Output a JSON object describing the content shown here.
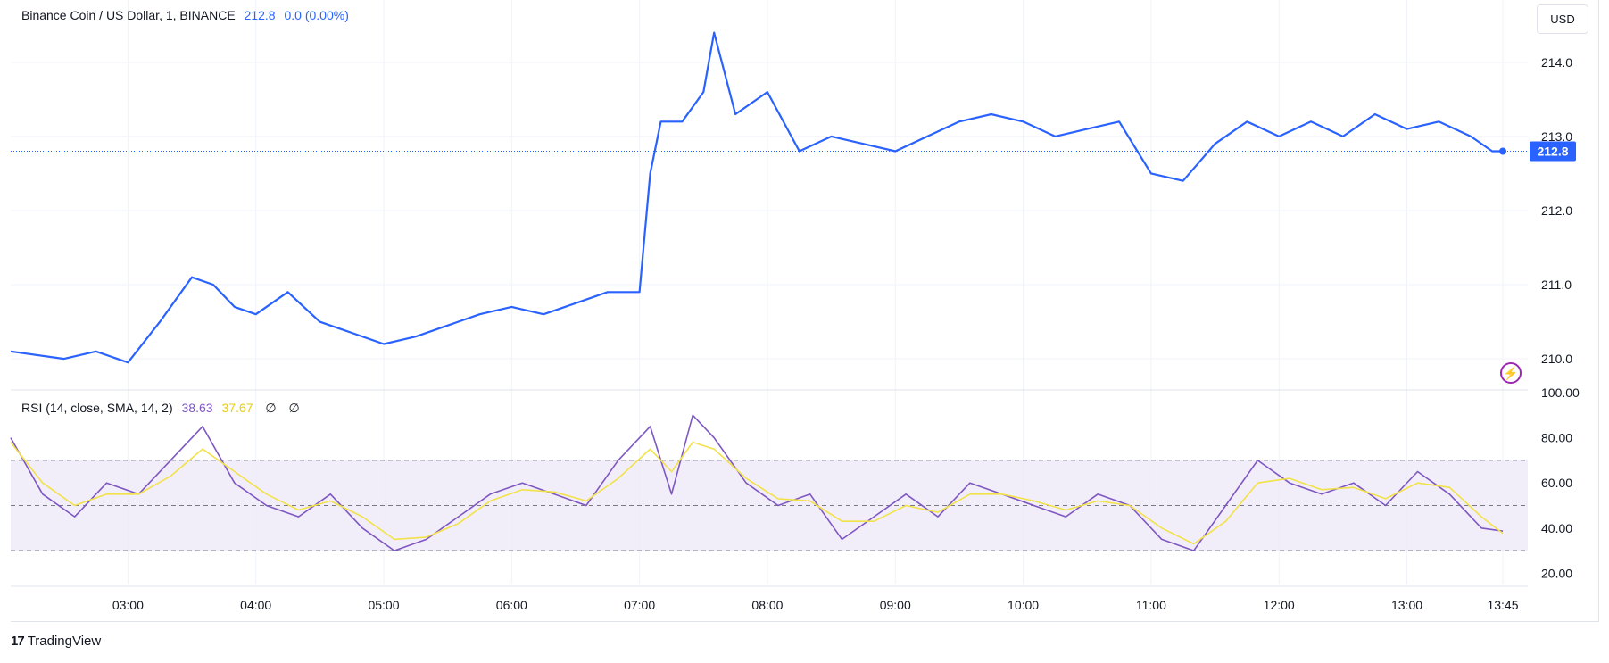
{
  "header": {
    "symbol": "Binance Coin / US Dollar, 1, BINANCE",
    "price": "212.8",
    "change": "0.0 (0.00%)"
  },
  "currency_button": "USD",
  "price_axis": {
    "labels": [
      "214.0",
      "213.0",
      "212.0",
      "211.0",
      "210.0"
    ],
    "last_price_label": "212.8"
  },
  "rsi": {
    "legend_label": "RSI (14, close, SMA, 14, 2)",
    "rsi_value": "38.63",
    "sma_value": "37.67",
    "extra1": "∅",
    "extra2": "∅",
    "axis_labels": [
      "100.00",
      "80.00",
      "60.00",
      "40.00",
      "20.00"
    ]
  },
  "time_axis": {
    "labels": [
      "03:00",
      "04:00",
      "05:00",
      "06:00",
      "07:00",
      "08:00",
      "09:00",
      "10:00",
      "11:00",
      "12:00",
      "13:00",
      "13:45"
    ]
  },
  "branding": "TradingView",
  "colors": {
    "price_line": "#2962ff",
    "rsi_line": "#7e57c2",
    "rsi_sma": "#f2e24a",
    "rsi_band": "#ede7f6"
  },
  "chart_data": [
    {
      "type": "line",
      "title": "Binance Coin / US Dollar, 1, BINANCE",
      "x": [
        "02:05",
        "02:30",
        "02:45",
        "03:00",
        "03:15",
        "03:30",
        "03:40",
        "03:50",
        "04:00",
        "04:15",
        "04:30",
        "04:45",
        "05:00",
        "05:15",
        "05:30",
        "05:45",
        "06:00",
        "06:15",
        "06:30",
        "06:45",
        "07:00",
        "07:05",
        "07:10",
        "07:20",
        "07:30",
        "07:35",
        "07:45",
        "08:00",
        "08:15",
        "08:30",
        "08:45",
        "09:00",
        "09:15",
        "09:30",
        "09:45",
        "10:00",
        "10:15",
        "10:30",
        "10:45",
        "11:00",
        "11:15",
        "11:30",
        "11:45",
        "12:00",
        "12:15",
        "12:30",
        "12:45",
        "13:00",
        "13:15",
        "13:30",
        "13:40",
        "13:45"
      ],
      "series": [
        {
          "values": [
            210.1,
            210.0,
            210.1,
            209.95,
            210.5,
            211.1,
            211.0,
            210.7,
            210.6,
            210.9,
            210.5,
            210.35,
            210.2,
            210.3,
            210.45,
            210.6,
            210.7,
            210.6,
            210.75,
            210.9,
            210.9,
            212.5,
            213.2,
            213.2,
            213.6,
            214.4,
            213.3,
            213.6,
            212.8,
            213.0,
            212.9,
            212.8,
            213.0,
            213.2,
            213.3,
            213.2,
            213.0,
            213.1,
            213.2,
            212.5,
            212.4,
            212.9,
            213.2,
            213.0,
            213.2,
            213.0,
            213.3,
            213.1,
            213.2,
            213.0,
            212.8,
            212.8
          ]
        }
      ],
      "ylim": [
        209.7,
        214.6
      ],
      "grid": true
    },
    {
      "type": "line",
      "title": "RSI (14, close, SMA, 14, 2)",
      "x": [
        "02:05",
        "02:20",
        "02:35",
        "02:50",
        "03:05",
        "03:20",
        "03:35",
        "03:50",
        "04:05",
        "04:20",
        "04:35",
        "04:50",
        "05:05",
        "05:20",
        "05:35",
        "05:50",
        "06:05",
        "06:20",
        "06:35",
        "06:50",
        "07:05",
        "07:15",
        "07:25",
        "07:35",
        "07:50",
        "08:05",
        "08:20",
        "08:35",
        "08:50",
        "09:05",
        "09:20",
        "09:35",
        "09:50",
        "10:05",
        "10:20",
        "10:35",
        "10:50",
        "11:05",
        "11:20",
        "11:35",
        "11:50",
        "12:05",
        "12:20",
        "12:35",
        "12:50",
        "13:05",
        "13:20",
        "13:35",
        "13:45"
      ],
      "series": [
        {
          "name": "RSI",
          "values": [
            80,
            55,
            45,
            60,
            55,
            70,
            85,
            60,
            50,
            45,
            55,
            40,
            30,
            35,
            45,
            55,
            60,
            55,
            50,
            70,
            85,
            55,
            90,
            80,
            60,
            50,
            55,
            35,
            45,
            55,
            45,
            60,
            55,
            50,
            45,
            55,
            50,
            35,
            30,
            50,
            70,
            60,
            55,
            60,
            50,
            65,
            55,
            40,
            38.63
          ]
        },
        {
          "name": "SMA",
          "values": [
            78,
            60,
            50,
            55,
            55,
            63,
            75,
            65,
            55,
            48,
            52,
            45,
            35,
            36,
            42,
            52,
            57,
            56,
            52,
            62,
            75,
            65,
            78,
            75,
            62,
            53,
            52,
            43,
            43,
            50,
            47,
            55,
            55,
            52,
            48,
            52,
            50,
            40,
            33,
            43,
            60,
            62,
            57,
            58,
            53,
            60,
            58,
            45,
            37.67
          ]
        }
      ],
      "ylim": [
        15,
        100
      ],
      "grid": true
    }
  ]
}
